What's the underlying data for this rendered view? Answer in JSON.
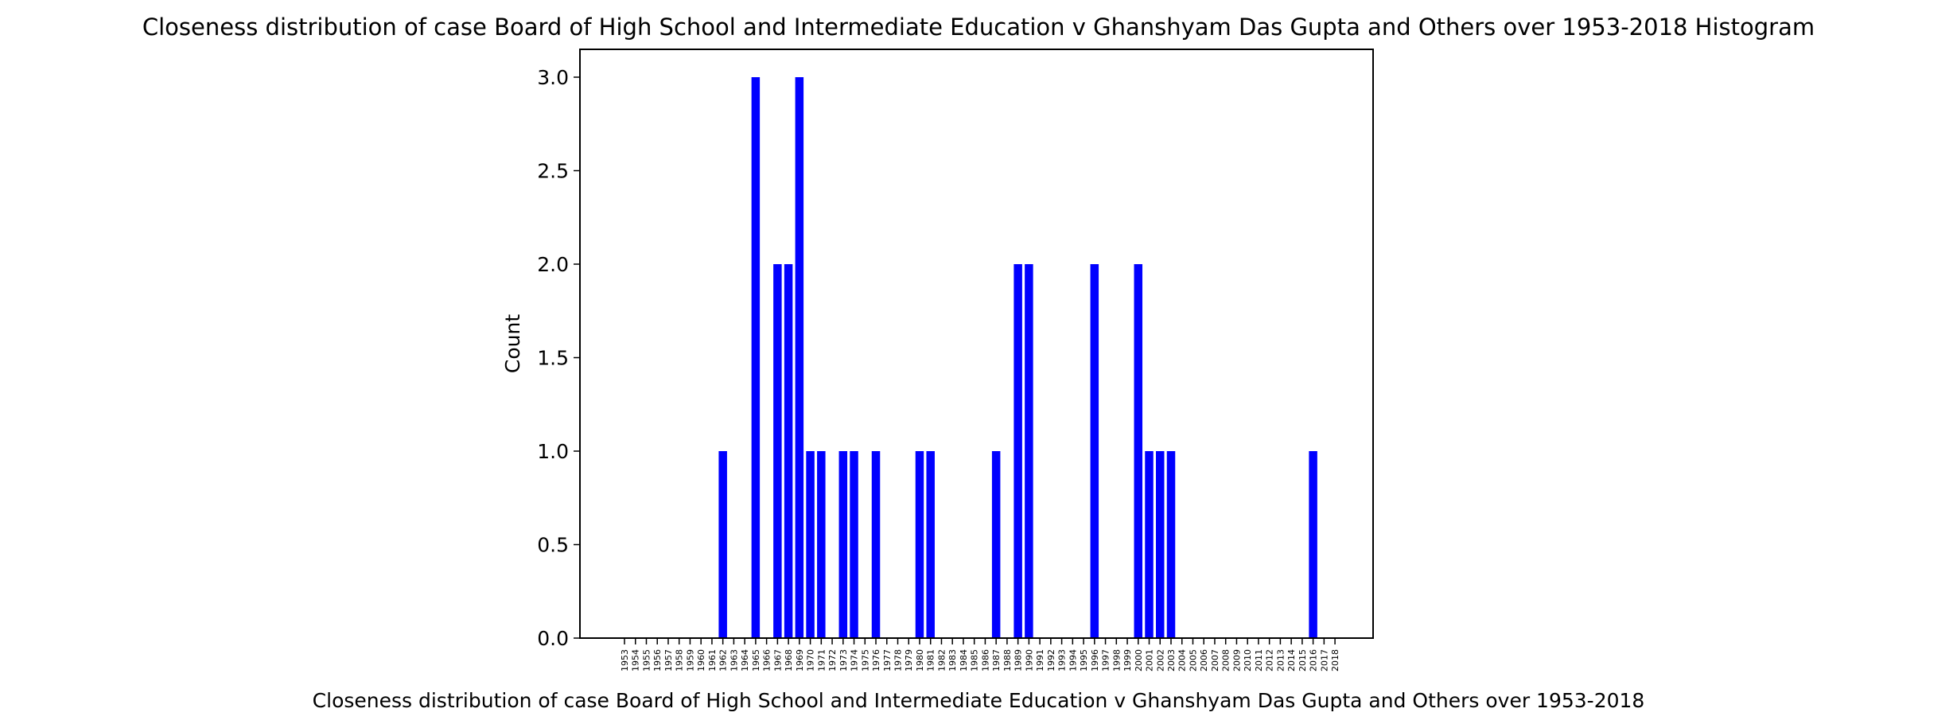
{
  "chart_data": {
    "type": "bar",
    "title": "Closeness distribution of case Board of High School and Intermediate Education v Ghanshyam Das Gupta and Others over 1953-2018 Histogram",
    "xlabel": "Closeness distribution of case Board of High School and Intermediate Education v Ghanshyam Das Gupta and Others over 1953-2018",
    "ylabel": "Count",
    "ylim": [
      0,
      3.15
    ],
    "yticks": [
      "0.0",
      "0.5",
      "1.0",
      "1.5",
      "2.0",
      "2.5",
      "3.0"
    ],
    "grid": false,
    "bar_color": "#0000ff",
    "categories": [
      "1953",
      "1954",
      "1955",
      "1956",
      "1957",
      "1958",
      "1959",
      "1960",
      "1961",
      "1962",
      "1963",
      "1964",
      "1965",
      "1966",
      "1967",
      "1968",
      "1969",
      "1970",
      "1971",
      "1972",
      "1973",
      "1974",
      "1975",
      "1976",
      "1977",
      "1978",
      "1979",
      "1980",
      "1981",
      "1982",
      "1983",
      "1984",
      "1985",
      "1986",
      "1987",
      "1988",
      "1989",
      "1990",
      "1991",
      "1992",
      "1993",
      "1994",
      "1995",
      "1996",
      "1997",
      "1998",
      "1999",
      "2000",
      "2001",
      "2002",
      "2003",
      "2004",
      "2005",
      "2006",
      "2007",
      "2008",
      "2009",
      "2010",
      "2011",
      "2012",
      "2013",
      "2014",
      "2015",
      "2016",
      "2017",
      "2018"
    ],
    "values": [
      0,
      0,
      0,
      0,
      0,
      0,
      0,
      0,
      0,
      1,
      0,
      0,
      3,
      0,
      2,
      2,
      3,
      1,
      1,
      0,
      1,
      1,
      0,
      1,
      0,
      0,
      0,
      1,
      1,
      0,
      0,
      0,
      0,
      0,
      1,
      0,
      2,
      2,
      0,
      0,
      0,
      0,
      0,
      2,
      0,
      0,
      0,
      2,
      1,
      1,
      1,
      0,
      0,
      0,
      0,
      0,
      0,
      0,
      0,
      0,
      0,
      0,
      0,
      1,
      0,
      0
    ]
  }
}
